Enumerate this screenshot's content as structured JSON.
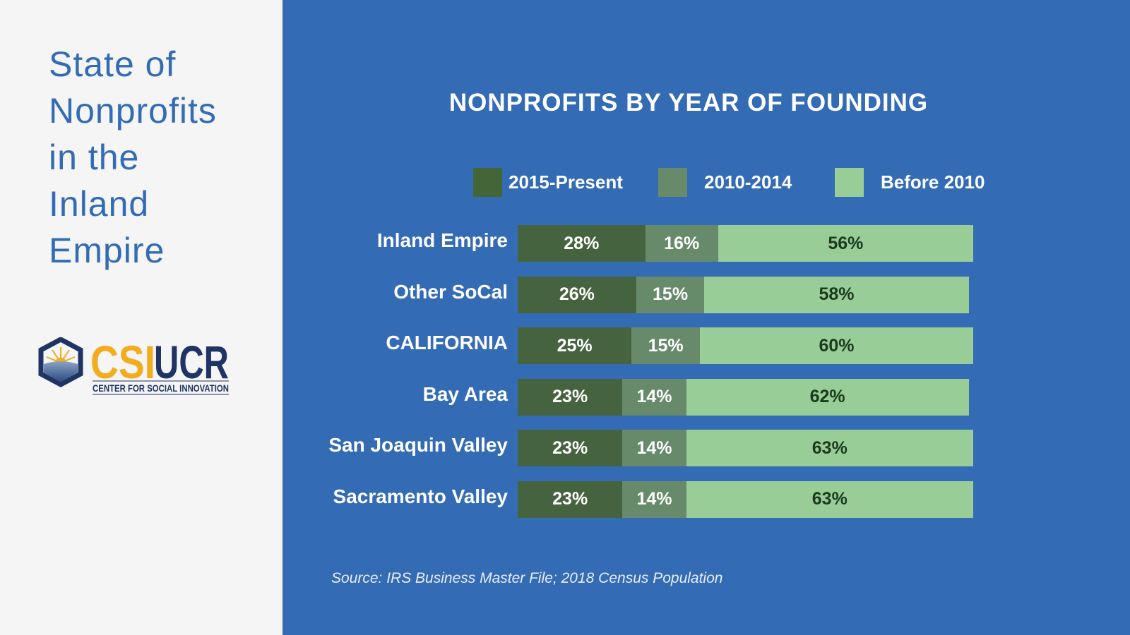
{
  "sidebar": {
    "title_lines": [
      "State of",
      "Nonprofits",
      "in the",
      "Inland",
      "Empire"
    ],
    "logo": {
      "text_a": "CSI",
      "text_b": "UCR",
      "subtitle": "CENTER FOR SOCIAL INNOVATION"
    }
  },
  "colors": {
    "dark": "#466340",
    "mid": "#678b6a",
    "light": "#98cd98",
    "light_text": "#1c3a1c"
  },
  "chart_data": {
    "type": "bar",
    "orientation": "horizontal-stacked",
    "title": "NONPROFITS BY YEAR OF FOUNDING",
    "legend": [
      "2015-Present",
      "2010-2014",
      "Before 2010"
    ],
    "legend_position": "top",
    "categories": [
      "Inland Empire",
      "Other SoCal",
      "CALIFORNIA",
      "Bay Area",
      "San Joaquin Valley",
      "Sacramento Valley"
    ],
    "series": [
      {
        "name": "2015-Present",
        "values": [
          28,
          26,
          25,
          23,
          23,
          23
        ]
      },
      {
        "name": "2010-2014",
        "values": [
          16,
          15,
          15,
          14,
          14,
          14
        ]
      },
      {
        "name": "Before 2010",
        "values": [
          56,
          58,
          60,
          62,
          63,
          63
        ]
      }
    ],
    "unit": "%",
    "source": "Source: IRS Business Master File; 2018 Census Population"
  }
}
